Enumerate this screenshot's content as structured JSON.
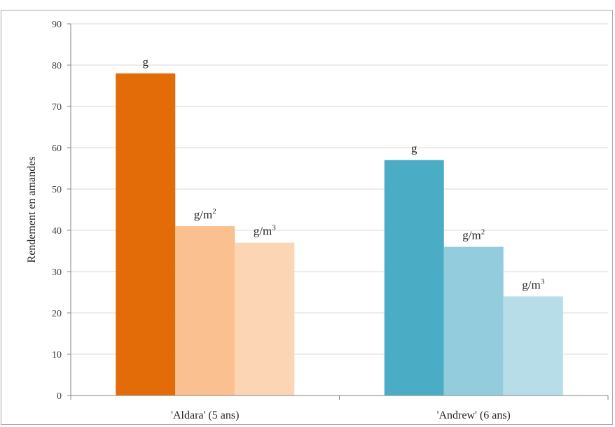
{
  "chart_data": {
    "type": "bar",
    "title": "",
    "xlabel": "",
    "ylabel": "Rendement en amandes",
    "ylim": [
      0,
      90
    ],
    "yticks": [
      0,
      10,
      20,
      30,
      40,
      50,
      60,
      70,
      80,
      90
    ],
    "grid": true,
    "legend": "none",
    "categories": [
      "'Aldara' (5 ans)",
      "'Andrew' (6 ans)"
    ],
    "bars": [
      [
        {
          "label": "g",
          "unit_base": "g",
          "unit_exp": "",
          "value": 78,
          "color": "#e36c09"
        },
        {
          "label": "g/m2",
          "unit_base": "g/m",
          "unit_exp": "2",
          "value": 41,
          "color": "#fac090"
        },
        {
          "label": "g/m3",
          "unit_base": "g/m",
          "unit_exp": "3",
          "value": 37,
          "color": "#fcd5b5"
        }
      ],
      [
        {
          "label": "g",
          "unit_base": "g",
          "unit_exp": "",
          "value": 57,
          "color": "#4bacc6"
        },
        {
          "label": "g/m2",
          "unit_base": "g/m",
          "unit_exp": "2",
          "value": 36,
          "color": "#93cddd"
        },
        {
          "label": "g/m3",
          "unit_base": "g/m",
          "unit_exp": "3",
          "value": 24,
          "color": "#b7dee8"
        }
      ]
    ]
  }
}
